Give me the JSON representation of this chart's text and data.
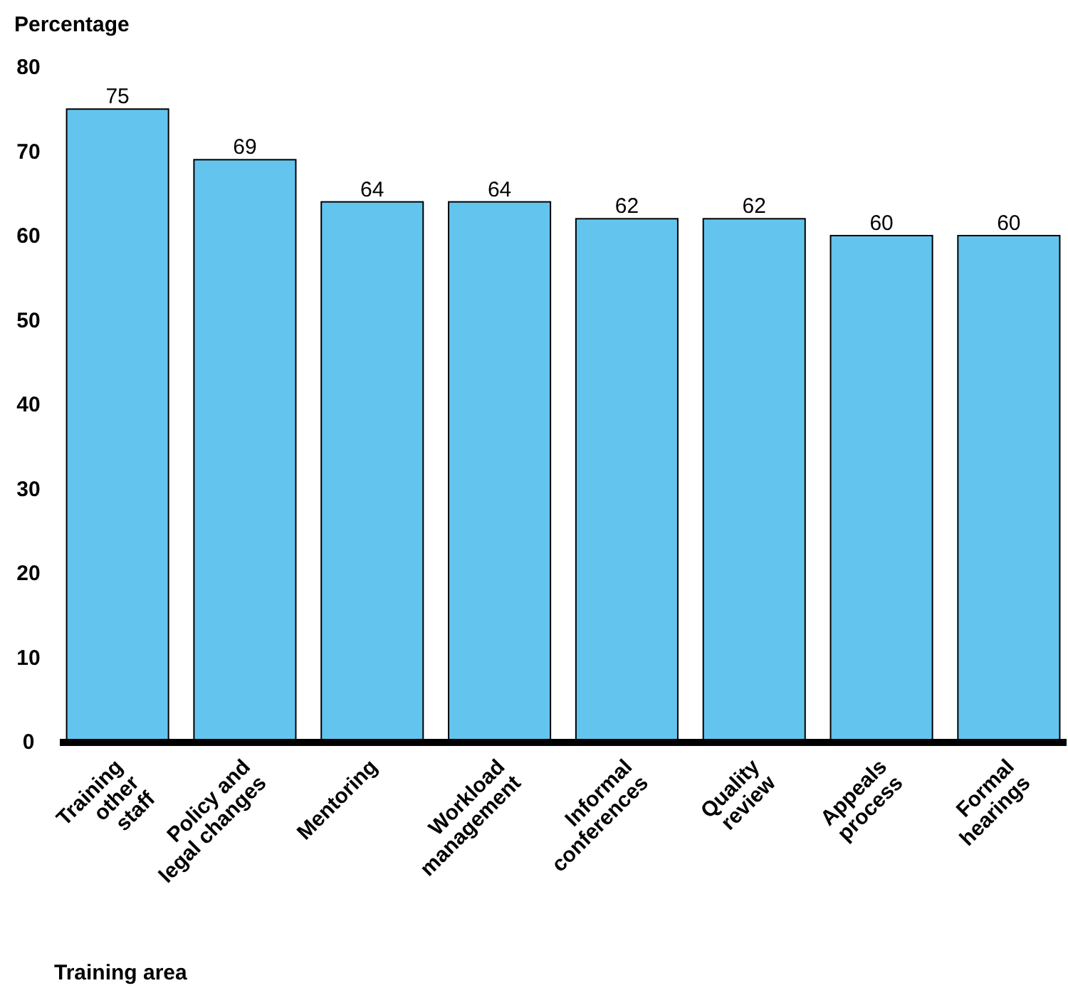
{
  "chart_data": {
    "type": "bar",
    "ylabel": "Percentage",
    "xlabel": "Training area",
    "categories": [
      "Training\nother\nstaff",
      "Policy and\nlegal changes",
      "Mentoring",
      "Workload\nmanagement",
      "Informal\nconferences",
      "Quality\nreview",
      "Appeals\nprocess",
      "Formal\nhearings"
    ],
    "values": [
      75,
      69,
      64,
      64,
      62,
      62,
      60,
      60
    ],
    "color": "#63c5ee",
    "ylim": [
      0,
      80
    ],
    "yticks": [
      0,
      10,
      20,
      30,
      40,
      50,
      60,
      70,
      80
    ],
    "data_labels": true,
    "grid": false
  }
}
